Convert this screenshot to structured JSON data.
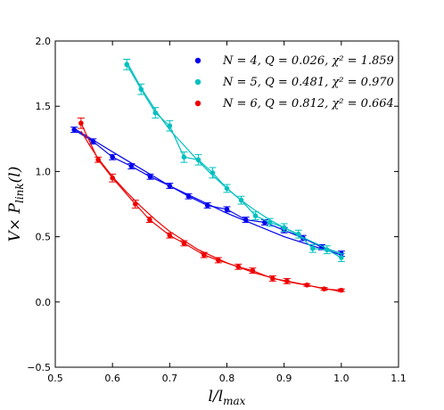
{
  "chart_data": {
    "type": "scatter",
    "title": "",
    "xlabel": "l/l",
    "xlabel_sub": "max",
    "ylabel_main": "V× P",
    "ylabel_sub": "link",
    "ylabel_tail": "(l)",
    "xlim": [
      0.5,
      1.1
    ],
    "ylim": [
      -0.5,
      2.0
    ],
    "xticks": [
      0.5,
      0.6,
      0.7,
      0.8,
      0.9,
      1.0,
      1.1
    ],
    "xtick_labels": [
      "0.5",
      "0.6",
      "0.7",
      "0.8",
      "0.9",
      "1.0",
      "1.1"
    ],
    "yticks": [
      -0.5,
      0.0,
      0.5,
      1.0,
      1.5,
      2.0
    ],
    "ytick_labels": [
      "−0.5",
      "0.0",
      "0.5",
      "1.0",
      "1.5",
      "2.0"
    ],
    "grid": false,
    "legend_position": "top-right",
    "series": [
      {
        "name": "N = 4, Q = 0.026, χ² = 1.859",
        "color": "#0000ee",
        "x": [
          0.533,
          0.566,
          0.6,
          0.633,
          0.666,
          0.7,
          0.733,
          0.766,
          0.8,
          0.833,
          0.866,
          0.9,
          0.933,
          0.966,
          1.0
        ],
        "y": [
          1.32,
          1.23,
          1.11,
          1.04,
          0.96,
          0.89,
          0.81,
          0.74,
          0.71,
          0.63,
          0.61,
          0.55,
          0.49,
          0.42,
          0.37
        ],
        "err": [
          0.02,
          0.02,
          0.02,
          0.02,
          0.02,
          0.02,
          0.02,
          0.02,
          0.02,
          0.02,
          0.02,
          0.02,
          0.02,
          0.02,
          0.02
        ],
        "fit": [
          [
            0.533,
            1.33
          ],
          [
            0.6,
            1.15
          ],
          [
            0.7,
            0.89
          ],
          [
            0.8,
            0.68
          ],
          [
            0.9,
            0.5
          ],
          [
            1.0,
            0.36
          ]
        ]
      },
      {
        "name": "N = 5, Q = 0.481, χ² = 0.970",
        "color": "#00c0c0",
        "x": [
          0.625,
          0.65,
          0.675,
          0.7,
          0.725,
          0.75,
          0.775,
          0.8,
          0.825,
          0.85,
          0.875,
          0.9,
          0.925,
          0.95,
          0.975,
          1.0
        ],
        "y": [
          1.82,
          1.63,
          1.45,
          1.35,
          1.11,
          1.09,
          0.99,
          0.87,
          0.78,
          0.66,
          0.61,
          0.57,
          0.52,
          0.41,
          0.4,
          0.34
        ],
        "err": [
          0.04,
          0.04,
          0.04,
          0.04,
          0.04,
          0.04,
          0.04,
          0.03,
          0.03,
          0.03,
          0.03,
          0.03,
          0.03,
          0.03,
          0.03,
          0.03
        ],
        "fit": [
          [
            0.625,
            1.84
          ],
          [
            0.65,
            1.64
          ],
          [
            0.675,
            1.47
          ],
          [
            0.7,
            1.32
          ],
          [
            0.725,
            1.2
          ],
          [
            0.75,
            1.08
          ],
          [
            0.775,
            0.97
          ],
          [
            0.8,
            0.87
          ],
          [
            0.825,
            0.78
          ],
          [
            0.85,
            0.7
          ],
          [
            0.875,
            0.63
          ],
          [
            0.9,
            0.57
          ],
          [
            0.925,
            0.51
          ],
          [
            0.95,
            0.46
          ],
          [
            0.975,
            0.41
          ],
          [
            1.0,
            0.37
          ]
        ]
      },
      {
        "name": "N = 6, Q = 0.812, χ² = 0.664",
        "color": "#ee0000",
        "x": [
          0.545,
          0.575,
          0.6,
          0.64,
          0.665,
          0.7,
          0.725,
          0.76,
          0.785,
          0.82,
          0.845,
          0.88,
          0.905,
          0.94,
          0.97,
          1.0
        ],
        "y": [
          1.37,
          1.09,
          0.95,
          0.75,
          0.63,
          0.51,
          0.45,
          0.36,
          0.32,
          0.27,
          0.24,
          0.18,
          0.16,
          0.13,
          0.1,
          0.09
        ],
        "err": [
          0.04,
          0.02,
          0.03,
          0.03,
          0.02,
          0.02,
          0.02,
          0.02,
          0.02,
          0.02,
          0.02,
          0.02,
          0.02,
          0.01,
          0.01,
          0.01
        ],
        "fit": [
          [
            0.545,
            1.31
          ],
          [
            0.56,
            1.2
          ],
          [
            0.575,
            1.1
          ],
          [
            0.6,
            0.96
          ],
          [
            0.625,
            0.84
          ],
          [
            0.65,
            0.73
          ],
          [
            0.675,
            0.63
          ],
          [
            0.7,
            0.54
          ],
          [
            0.725,
            0.47
          ],
          [
            0.75,
            0.4
          ],
          [
            0.8,
            0.3
          ],
          [
            0.85,
            0.22
          ],
          [
            0.9,
            0.16
          ],
          [
            0.95,
            0.12
          ],
          [
            1.0,
            0.08
          ]
        ]
      }
    ]
  }
}
